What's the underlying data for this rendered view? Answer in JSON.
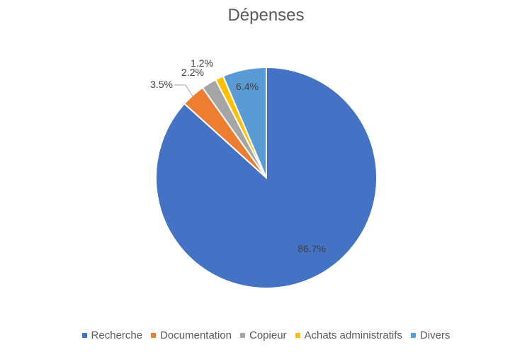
{
  "chart_data": {
    "type": "pie",
    "title": "Dépenses",
    "slices": [
      {
        "label": "Recherche",
        "value": 86.7,
        "display": "86.7%",
        "color": "#4472C4"
      },
      {
        "label": "Documentation",
        "value": 3.5,
        "display": "3.5%",
        "color": "#ED7D31"
      },
      {
        "label": "Copieur",
        "value": 2.2,
        "display": "2.2%",
        "color": "#A5A5A5"
      },
      {
        "label": "Achats administratifs",
        "value": 1.2,
        "display": "1.2%",
        "color": "#FFC000"
      },
      {
        "label": "Divers",
        "value": 6.4,
        "display": "6.4%",
        "color": "#5B9BD5"
      }
    ],
    "start_angle_deg": 0,
    "direction": "clockwise",
    "legend_position": "bottom"
  }
}
